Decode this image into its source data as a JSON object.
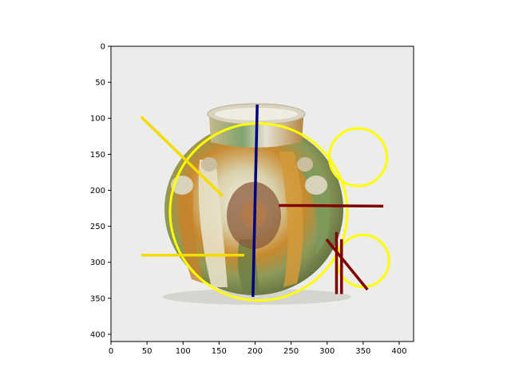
{
  "axes": {
    "x_ticks": [
      "0",
      "50",
      "100",
      "150",
      "200",
      "250",
      "300",
      "350",
      "400"
    ],
    "y_ticks": [
      "0",
      "50",
      "100",
      "150",
      "200",
      "250",
      "300",
      "350",
      "400"
    ],
    "xlim": [
      0,
      420
    ],
    "ylim": [
      410,
      0
    ]
  },
  "image": {
    "subject": "tricolor-glazed-jar-photo",
    "background_color": "#ececea"
  },
  "chart_data": {
    "type": "scatter",
    "note_units": "image pixel coordinates",
    "circles": [
      {
        "cx": 205,
        "cy": 230,
        "r": 123,
        "color": "#ffff00"
      },
      {
        "cx": 343,
        "cy": 154,
        "r": 40,
        "color": "#ffff00"
      },
      {
        "cx": 350,
        "cy": 298,
        "r": 36,
        "color": "#ffff00"
      }
    ],
    "lines": [
      {
        "x1": 42,
        "y1": 98,
        "x2": 155,
        "y2": 208,
        "color": "#f5dc00"
      },
      {
        "x1": 42,
        "y1": 290,
        "x2": 185,
        "y2": 290,
        "color": "#f5dc00"
      },
      {
        "x1": 203,
        "y1": 81,
        "x2": 197,
        "y2": 348,
        "color": "#000080"
      },
      {
        "x1": 233,
        "y1": 221,
        "x2": 378,
        "y2": 222,
        "color": "#800000"
      },
      {
        "x1": 299,
        "y1": 268,
        "x2": 356,
        "y2": 338,
        "color": "#800000"
      },
      {
        "x1": 313,
        "y1": 258,
        "x2": 313,
        "y2": 344,
        "color": "#800000"
      },
      {
        "x1": 320,
        "y1": 268,
        "x2": 320,
        "y2": 344,
        "color": "#800000"
      }
    ]
  }
}
